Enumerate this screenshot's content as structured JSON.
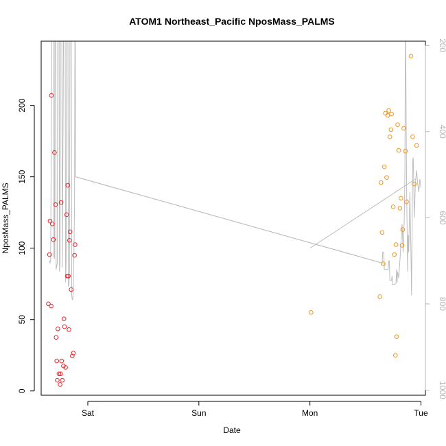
{
  "chart_data": {
    "type": "scatter",
    "title": "ATOM1 Northeast_Pacific NposMass_PALMS",
    "xlabel": "Date",
    "ylabel": "NposMass_PALMS",
    "x_unit": "days from Friday 00:00",
    "xlim": [
      0.58,
      4.04
    ],
    "ylim": [
      -3,
      245
    ],
    "right_ylim_inverted": [
      1012,
      190
    ],
    "x_ticks": [
      {
        "label": "Sat",
        "value": 1
      },
      {
        "label": "Sun",
        "value": 2
      },
      {
        "label": "Mon",
        "value": 3
      },
      {
        "label": "Tue",
        "value": 4
      }
    ],
    "y_ticks": [
      0,
      50,
      100,
      150,
      200
    ],
    "right_y_ticks": [
      200,
      400,
      600,
      800,
      1000
    ],
    "grid": false,
    "legend": "none",
    "colors": {
      "series_red": "#e8252a",
      "series_orange": "#f2951e",
      "line": "#bdbdbd",
      "right_axis": "#b4b4b4",
      "frame": "#000000"
    },
    "series": [
      {
        "color": "#e8252a",
        "points": [
          [
            0.645,
            61
          ],
          [
            0.655,
            95.5
          ],
          [
            0.66,
            119
          ],
          [
            0.67,
            59.5
          ],
          [
            0.672,
            207
          ],
          [
            0.68,
            117
          ],
          [
            0.69,
            106
          ],
          [
            0.7,
            167
          ],
          [
            0.71,
            130.5
          ],
          [
            0.715,
            37.5
          ],
          [
            0.72,
            21
          ],
          [
            0.725,
            7.5
          ],
          [
            0.73,
            43.5
          ],
          [
            0.74,
            12
          ],
          [
            0.75,
            4.5
          ],
          [
            0.755,
            12
          ],
          [
            0.76,
            132
          ],
          [
            0.765,
            21
          ],
          [
            0.77,
            7.5
          ],
          [
            0.78,
            17.5
          ],
          [
            0.785,
            50.5
          ],
          [
            0.79,
            45
          ],
          [
            0.8,
            16.5
          ],
          [
            0.81,
            123.5
          ],
          [
            0.815,
            80.5
          ],
          [
            0.82,
            144
          ],
          [
            0.825,
            80.5
          ],
          [
            0.83,
            43
          ],
          [
            0.835,
            105.5
          ],
          [
            0.84,
            111.5
          ],
          [
            0.85,
            71
          ],
          [
            0.86,
            24.5
          ],
          [
            0.87,
            26.5
          ],
          [
            0.88,
            95
          ],
          [
            0.885,
            102.5
          ]
        ]
      },
      {
        "color": "#f2951e",
        "points": [
          [
            3.01,
            55
          ],
          [
            3.63,
            66
          ],
          [
            3.64,
            146
          ],
          [
            3.65,
            111
          ],
          [
            3.66,
            89
          ],
          [
            3.67,
            157
          ],
          [
            3.68,
            194.5
          ],
          [
            3.69,
            149.5
          ],
          [
            3.7,
            193
          ],
          [
            3.71,
            196.5
          ],
          [
            3.72,
            178
          ],
          [
            3.73,
            183
          ],
          [
            3.735,
            194
          ],
          [
            3.75,
            129
          ],
          [
            3.76,
            95.5
          ],
          [
            3.77,
            25
          ],
          [
            3.775,
            102.5
          ],
          [
            3.78,
            38
          ],
          [
            3.79,
            186.5
          ],
          [
            3.8,
            168.5
          ],
          [
            3.81,
            128
          ],
          [
            3.82,
            135
          ],
          [
            3.83,
            102
          ],
          [
            3.835,
            113
          ],
          [
            3.845,
            184
          ],
          [
            3.86,
            168
          ],
          [
            3.87,
            132.5
          ],
          [
            3.91,
            234.5
          ],
          [
            3.925,
            178
          ],
          [
            3.94,
            145
          ],
          [
            3.96,
            172
          ]
        ]
      }
    ],
    "line_series": [
      {
        "color": "#bdbdbd",
        "axis": "right",
        "points": [
          [
            0.65,
            700
          ],
          [
            0.655,
            700
          ],
          [
            0.66,
            705
          ],
          [
            0.665,
            700
          ],
          [
            0.68,
            0
          ],
          [
            0.69,
            0
          ],
          [
            0.695,
            690
          ],
          [
            0.7,
            695
          ],
          [
            0.705,
            0
          ],
          [
            0.71,
            0
          ],
          [
            0.715,
            720
          ],
          [
            0.725,
            705
          ],
          [
            0.73,
            0
          ],
          [
            0.74,
            0
          ],
          [
            0.745,
            725
          ],
          [
            0.75,
            705
          ],
          [
            0.755,
            0
          ],
          [
            0.765,
            0
          ],
          [
            0.77,
            715
          ],
          [
            0.785,
            0
          ],
          [
            0.795,
            0
          ],
          [
            0.8,
            750
          ],
          [
            0.805,
            700
          ],
          [
            0.81,
            0
          ],
          [
            0.82,
            0
          ],
          [
            0.825,
            760
          ],
          [
            0.83,
            755
          ],
          [
            0.835,
            720
          ],
          [
            0.84,
            0
          ],
          [
            0.85,
            0
          ],
          [
            0.855,
            780
          ],
          [
            0.86,
            790
          ],
          [
            0.865,
            790
          ],
          [
            0.87,
            760
          ],
          [
            0.875,
            685
          ],
          [
            0.88,
            575
          ],
          [
            0.885,
            0
          ],
          [
            0.89,
            505
          ],
          [
            3.65,
            705
          ],
          [
            3.655,
            680
          ],
          [
            3.66,
            680
          ],
          [
            3.665,
            680
          ],
          [
            3.67,
            720
          ],
          [
            3.705,
            720
          ],
          [
            3.71,
            700
          ],
          [
            3.715,
            700
          ],
          [
            3.72,
            745
          ],
          [
            3.735,
            745
          ],
          [
            3.74,
            735
          ],
          [
            3.745,
            755
          ],
          [
            3.76,
            755
          ],
          [
            3.775,
            752
          ],
          [
            3.78,
            720
          ],
          [
            3.785,
            750
          ],
          [
            3.79,
            725
          ],
          [
            3.8,
            740
          ],
          [
            3.81,
            700
          ],
          [
            3.83,
            615
          ],
          [
            3.84,
            680
          ],
          [
            3.85,
            600
          ],
          [
            3.855,
            490
          ],
          [
            3.86,
            120
          ],
          [
            3.865,
            300
          ],
          [
            3.87,
            520
          ],
          [
            3.88,
            725
          ],
          [
            3.885,
            640
          ],
          [
            3.89,
            680
          ],
          [
            3.9,
            540
          ],
          [
            3.91,
            690
          ],
          [
            3.915,
            780
          ],
          [
            3.92,
            620
          ],
          [
            3.925,
            470
          ],
          [
            3.93,
            460
          ],
          [
            3.935,
            520
          ],
          [
            3.94,
            600
          ],
          [
            3.95,
            520
          ],
          [
            3.96,
            490
          ],
          [
            3.97,
            520
          ],
          [
            3.98,
            540
          ],
          [
            3.99,
            510
          ],
          [
            4.0,
            530
          ]
        ]
      },
      {
        "color": "#bdbdbd",
        "axis": "right",
        "points": [
          [
            0.89,
            505
          ],
          [
            3.65,
            705
          ]
        ]
      },
      {
        "color": "#bdbdbd",
        "axis": "right",
        "points": [
          [
            3.005,
            670
          ],
          [
            3.95,
            510
          ]
        ]
      }
    ]
  }
}
